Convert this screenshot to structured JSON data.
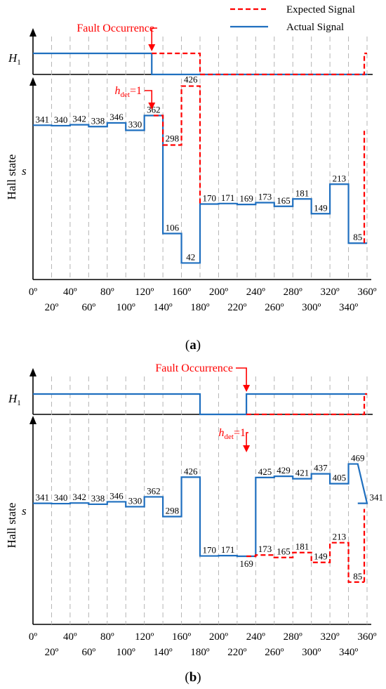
{
  "legend": {
    "expected": "Expected Signal",
    "actual": "Actual Signal",
    "expected_color": "#ff0000",
    "actual_color": "#1f6fbf"
  },
  "chart_data": [
    {
      "panel_label": "(a)",
      "type": "line",
      "annotation_fault": "Fault Occurrence",
      "annotation_hdet": "h_det=1",
      "h1_label": "H1",
      "ylabel": "Hall state",
      "y_symbol": "s",
      "x_ticks_top": [
        "0º",
        "40º",
        "80º",
        "120º",
        "160º",
        "200º",
        "240º",
        "280º",
        "320º",
        "360º"
      ],
      "x_ticks_bottom": [
        "20º",
        "60º",
        "100º",
        "140º",
        "180º",
        "220º",
        "260º",
        "300º",
        "340º"
      ],
      "fault_x": 128,
      "hdet_x": 128,
      "h1": {
        "actual": [
          [
            0,
            1
          ],
          [
            128,
            1
          ],
          [
            128,
            0
          ],
          [
            360,
            0
          ]
        ],
        "expected": [
          [
            128,
            1
          ],
          [
            180,
            1
          ],
          [
            180,
            0
          ],
          [
            357,
            0
          ],
          [
            357,
            1
          ],
          [
            360,
            1
          ]
        ]
      },
      "actual_values": [
        341,
        340,
        342,
        338,
        346,
        330,
        362,
        106,
        42,
        170,
        171,
        169,
        173,
        165,
        181,
        149,
        213,
        85
      ],
      "expected_overlay": [
        {
          "start": 140,
          "value": 298
        },
        {
          "start": 160,
          "value": 426
        },
        {
          "start": 180,
          "value": null
        }
      ],
      "expected_end": {
        "x": 357,
        "from": 85,
        "to": 341
      }
    },
    {
      "panel_label": "(b)",
      "type": "line",
      "annotation_fault": "Fault Occurrence",
      "annotation_hdet": "h_det=1",
      "h1_label": "H1",
      "ylabel": "Hall state",
      "y_symbol": "s",
      "x_ticks_top": [
        "0º",
        "40º",
        "80º",
        "120º",
        "160º",
        "200º",
        "240º",
        "280º",
        "320º",
        "360º"
      ],
      "x_ticks_bottom": [
        "20º",
        "60º",
        "100º",
        "140º",
        "180º",
        "220º",
        "260º",
        "300º",
        "340º"
      ],
      "fault_x": 230,
      "hdet_x": 230,
      "h1": {
        "actual": [
          [
            0,
            1
          ],
          [
            180,
            1
          ],
          [
            180,
            0
          ],
          [
            230,
            0
          ],
          [
            230,
            1
          ],
          [
            360,
            1
          ]
        ],
        "expected": [
          [
            230,
            0
          ],
          [
            357,
            0
          ],
          [
            357,
            1
          ],
          [
            360,
            1
          ]
        ]
      },
      "actual_values": [
        341,
        340,
        342,
        338,
        346,
        330,
        362,
        298,
        426,
        170,
        171,
        169,
        425,
        429,
        421,
        437,
        405,
        469,
        341
      ],
      "expected_values": [
        173,
        165,
        181,
        149,
        213,
        85
      ],
      "expected_end": {
        "x": 357,
        "from": 85,
        "to": 341
      }
    }
  ]
}
